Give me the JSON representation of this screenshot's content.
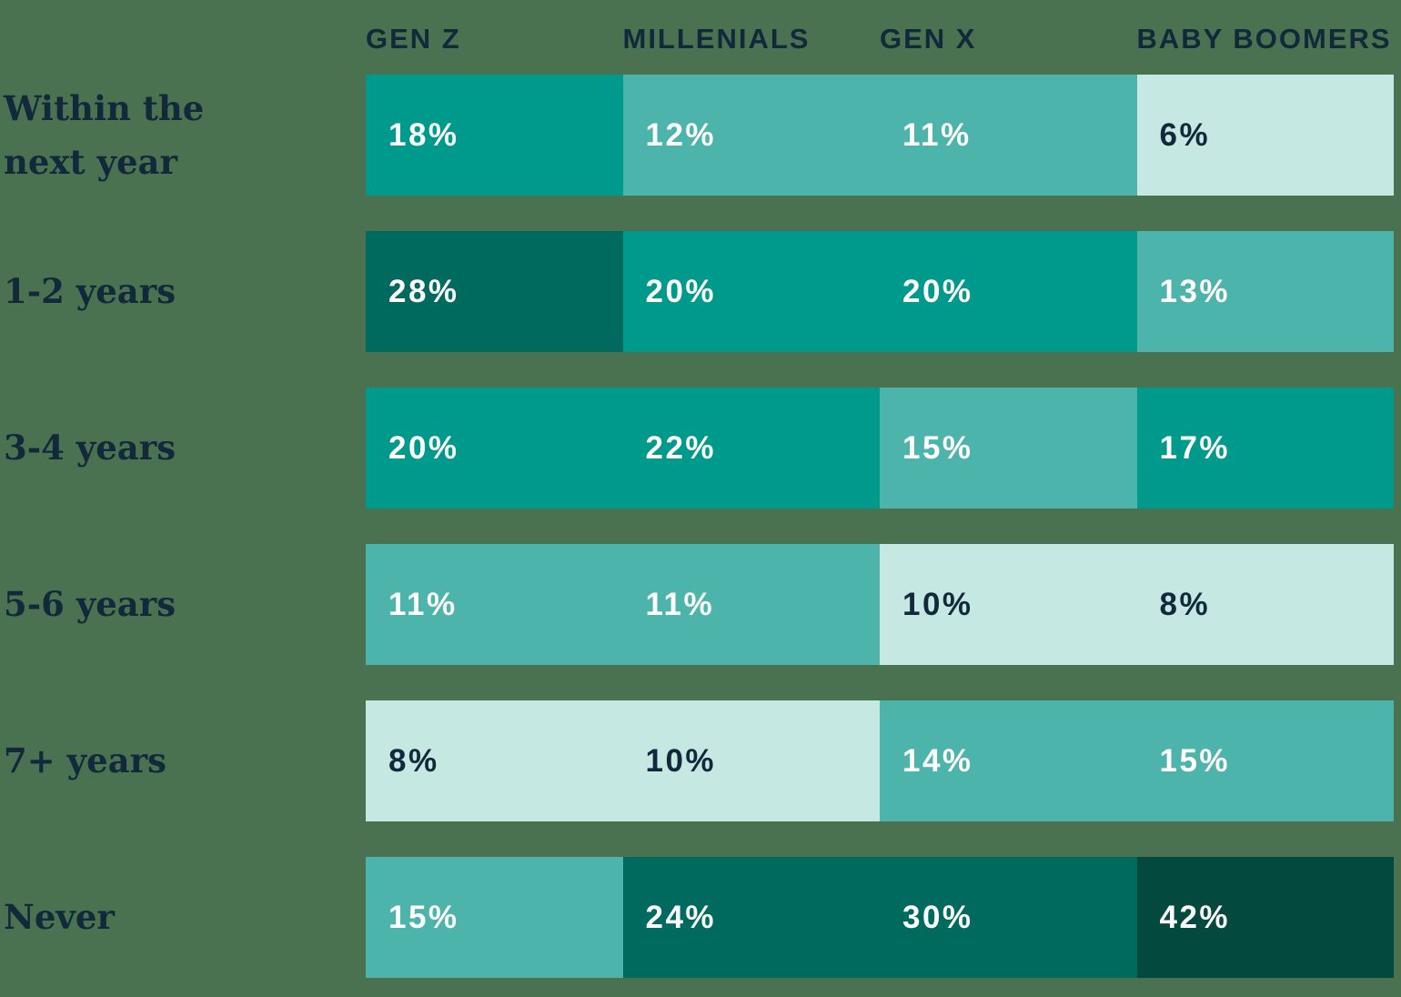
{
  "colors": {
    "background": "#4a7150",
    "header_text": "#11293b",
    "label_text": "#11293b",
    "value_text_on_dark": "#ffffff"
  },
  "chart_data": {
    "type": "heatmap",
    "title": "",
    "unit": "%",
    "legend_position": "none",
    "grid": false,
    "columns": [
      "GEN Z",
      "MILLENIALS",
      "GEN X",
      "BABY BOOMERS"
    ],
    "palette": {
      "lightest": "#c5e8e3",
      "light": "#4db4ab",
      "medium": "#009a8c",
      "dark": "#016a5e",
      "darkest": "#03493d"
    },
    "rows": [
      {
        "label": "Within the next year",
        "cells": [
          {
            "value": 18,
            "text": "18%",
            "tone": "medium"
          },
          {
            "value": 12,
            "text": "12%",
            "tone": "light"
          },
          {
            "value": 11,
            "text": "11%",
            "tone": "light"
          },
          {
            "value": 6,
            "text": "6%",
            "tone": "lightest"
          }
        ]
      },
      {
        "label": "1-2 years",
        "cells": [
          {
            "value": 28,
            "text": "28%",
            "tone": "dark"
          },
          {
            "value": 20,
            "text": "20%",
            "tone": "medium"
          },
          {
            "value": 20,
            "text": "20%",
            "tone": "medium"
          },
          {
            "value": 13,
            "text": "13%",
            "tone": "light"
          }
        ]
      },
      {
        "label": "3-4 years",
        "cells": [
          {
            "value": 20,
            "text": "20%",
            "tone": "medium"
          },
          {
            "value": 22,
            "text": "22%",
            "tone": "medium"
          },
          {
            "value": 15,
            "text": "15%",
            "tone": "light"
          },
          {
            "value": 17,
            "text": "17%",
            "tone": "medium"
          }
        ]
      },
      {
        "label": "5-6 years",
        "cells": [
          {
            "value": 11,
            "text": "11%",
            "tone": "light"
          },
          {
            "value": 11,
            "text": "11%",
            "tone": "light"
          },
          {
            "value": 10,
            "text": "10%",
            "tone": "lightest"
          },
          {
            "value": 8,
            "text": "8%",
            "tone": "lightest"
          }
        ]
      },
      {
        "label": "7+ years",
        "cells": [
          {
            "value": 8,
            "text": "8%",
            "tone": "lightest"
          },
          {
            "value": 10,
            "text": "10%",
            "tone": "lightest"
          },
          {
            "value": 14,
            "text": "14%",
            "tone": "light"
          },
          {
            "value": 15,
            "text": "15%",
            "tone": "light"
          }
        ]
      },
      {
        "label": "Never",
        "cells": [
          {
            "value": 15,
            "text": "15%",
            "tone": "light"
          },
          {
            "value": 24,
            "text": "24%",
            "tone": "dark"
          },
          {
            "value": 30,
            "text": "30%",
            "tone": "dark"
          },
          {
            "value": 42,
            "text": "42%",
            "tone": "darkest"
          }
        ]
      }
    ]
  }
}
